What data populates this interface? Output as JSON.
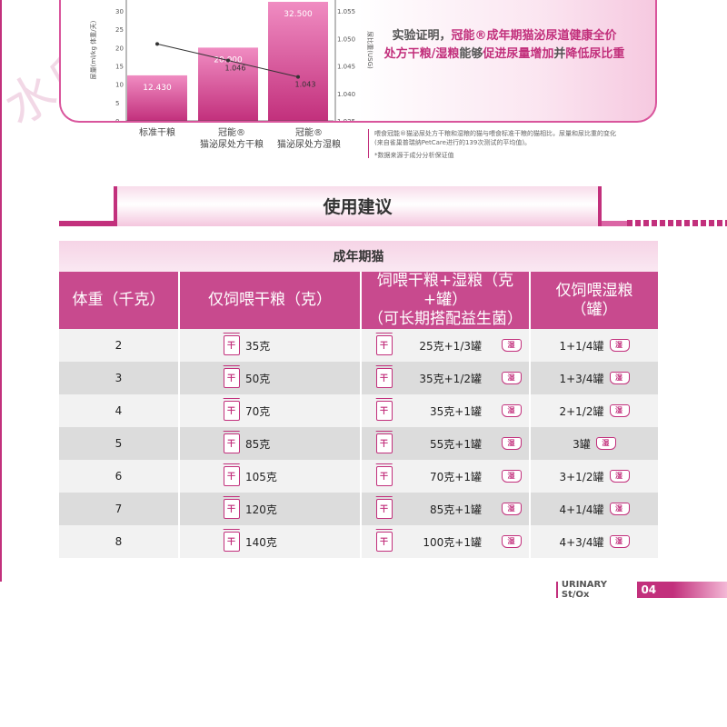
{
  "watermark": "水印",
  "chart": {
    "claim": {
      "l1_a": "实验证明，",
      "l1_b": "冠能®成年期猫泌尿道健康全价",
      "l2_a": "处方干粮/湿粮",
      "l2_b": "能够",
      "l2_c": "促进尿量增加",
      "l2_d": "并",
      "l2_e": "降低尿比重"
    },
    "notes": [
      "喂食冠能®猫泌尿处方干粮和湿粮的猫与喂食标准干粮的猫相比，尿量和尿比重的变化",
      "(来自雀巢普瑞纳PetCare进行的139次测试的平均值)。",
      "*数据来源于成分分析保证值"
    ],
    "x_labels": [
      [
        "标准干粮"
      ],
      [
        "冠能®",
        "猫泌尿处方干粮"
      ],
      [
        "冠能®",
        "猫泌尿处方湿粮"
      ]
    ]
  },
  "chart_data": {
    "type": "bar",
    "categories": [
      "标准干粮",
      "冠能® 猫泌尿处方干粮",
      "冠能® 猫泌尿处方湿粮"
    ],
    "series": [
      {
        "type": "bar",
        "values": [
          12.43,
          20.0,
          32.5
        ],
        "value_labels": [
          "12.430",
          "20.000",
          "32.500"
        ],
        "axis": "left"
      },
      {
        "type": "line",
        "values": [
          1.049,
          1.046,
          1.043
        ],
        "value_labels": [
          "",
          "1.046",
          "1.043"
        ],
        "axis": "right"
      }
    ],
    "ylabel": "尿量(ml/kg 体重/天)",
    "y2label": "尿比重(USG)",
    "yticks": [
      0,
      5,
      10,
      15,
      20,
      25,
      30
    ],
    "y2ticks": [
      "1.035",
      "1.040",
      "1.045",
      "1.050",
      "1.055"
    ],
    "ylim": [
      0,
      33
    ],
    "y2lim": [
      1.035,
      1.057
    ]
  },
  "section": {
    "title": "使用建议"
  },
  "table": {
    "category": "成年期猫",
    "headers": {
      "weight": "体重（千克）",
      "dry": "仅饲喂干粮（克）",
      "mix_l1": "饲喂干粮+湿粮（克+罐）",
      "mix_l2": "（可长期搭配益生菌）",
      "wet_l1": "仅饲喂湿粮",
      "wet_l2": "（罐）"
    },
    "dry_icon_text": "干",
    "wet_icon_text": "湿",
    "rows": [
      {
        "weight": "2",
        "dry": "35克",
        "mix": "25克+1/3罐",
        "wet": "1+1/4罐"
      },
      {
        "weight": "3",
        "dry": "50克",
        "mix": "35克+1/2罐",
        "wet": "1+3/4罐"
      },
      {
        "weight": "4",
        "dry": "70克",
        "mix": "35克+1罐",
        "wet": "2+1/2罐"
      },
      {
        "weight": "5",
        "dry": "85克",
        "mix": "55克+1罐",
        "wet": "3罐"
      },
      {
        "weight": "6",
        "dry": "105克",
        "mix": "70克+1罐",
        "wet": "3+1/2罐"
      },
      {
        "weight": "7",
        "dry": "120克",
        "mix": "85克+1罐",
        "wet": "4+1/4罐"
      },
      {
        "weight": "8",
        "dry": "140克",
        "mix": "100克+1罐",
        "wet": "4+3/4罐"
      }
    ]
  },
  "footer": {
    "brand": "URINARY St/Ox",
    "page": "04"
  }
}
